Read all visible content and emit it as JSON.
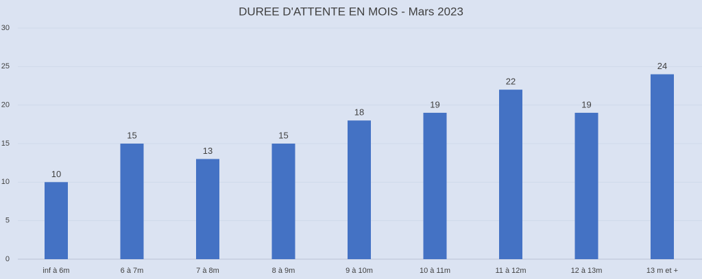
{
  "chart_data": {
    "type": "bar",
    "title": "DUREE D'ATTENTE EN MOIS - Mars 2023",
    "categories": [
      "inf à 6m",
      "6 à 7m",
      "7 à 8m",
      "8 à 9m",
      "9 à 10m",
      "10 à 11m",
      "11 à 12m",
      "12 à 13m",
      "13 m et +"
    ],
    "values": [
      10,
      15,
      13,
      15,
      18,
      19,
      22,
      19,
      24
    ],
    "color": "#4472c4",
    "ylim": [
      0,
      30
    ],
    "yticks": [
      0,
      5,
      10,
      15,
      20,
      25,
      30
    ],
    "grid": true
  }
}
